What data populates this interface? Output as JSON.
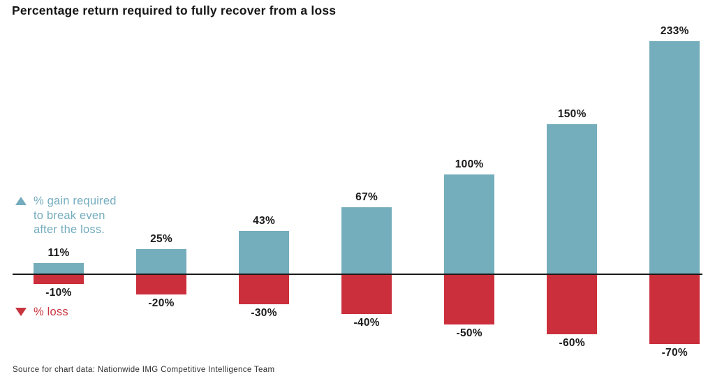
{
  "page": {
    "title": "Percentage return required to fully recover from a loss",
    "source": "Source for chart data: Nationwide IMG Competitive Intelligence Team"
  },
  "legend": {
    "gain": {
      "icon": "triangle-up-icon",
      "lines": [
        "% gain required",
        "to break even",
        "after the loss."
      ],
      "color": "#74ACBE"
    },
    "loss": {
      "icon": "triangle-down-icon",
      "label": "% loss",
      "color": "#C8353F"
    }
  },
  "chart_data": {
    "type": "bar",
    "title": "Percentage return required to fully recover from a loss",
    "unit": "%",
    "baseline": 0,
    "categories": [
      "-10%",
      "-20%",
      "-30%",
      "-40%",
      "-50%",
      "-60%",
      "-70%"
    ],
    "series": [
      {
        "name": "% gain required to break even after the loss.",
        "values": [
          11,
          25,
          43,
          67,
          100,
          150,
          233
        ],
        "color": "#74ADBB"
      },
      {
        "name": "% loss",
        "values": [
          -10,
          -20,
          -30,
          -40,
          -50,
          -60,
          -70
        ],
        "color": "#CB2F3B"
      }
    ],
    "ylim": [
      -70,
      233
    ],
    "grid": false,
    "legend_position": "left",
    "axis_line_color": "#1A1A1A",
    "data_labels": true
  }
}
